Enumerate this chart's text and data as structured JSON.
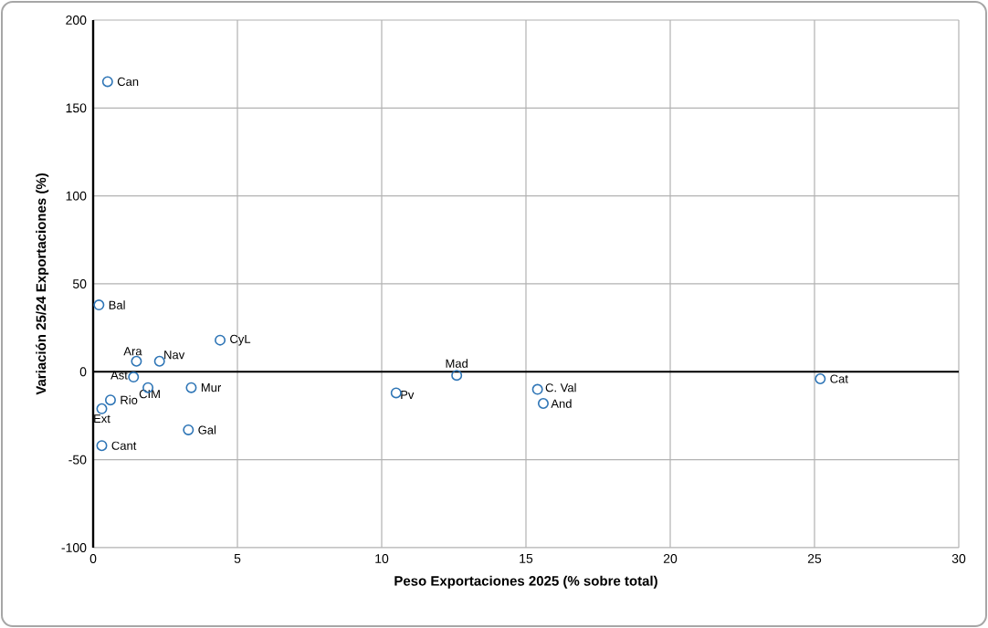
{
  "chart_data": {
    "type": "scatter",
    "xlabel": "Peso Exportaciones 2025 (% sobre total)",
    "ylabel": "Variación 25/24 Exportaciones (%)",
    "x": [
      0.5,
      0.2,
      1.5,
      2.3,
      4.4,
      1.4,
      1.9,
      3.4,
      0.6,
      0.3,
      3.3,
      0.3,
      12.6,
      10.5,
      15.4,
      15.6,
      25.2
    ],
    "values": [
      165,
      38,
      6,
      6,
      18,
      -3,
      -9,
      -9,
      -16,
      -21,
      -33,
      -42,
      -2,
      -12,
      -10,
      -18,
      -4
    ],
    "color": "#2e75b6",
    "marker": "circle",
    "grid": true,
    "xlim": [
      0,
      30
    ],
    "xticks": [
      0,
      5,
      10,
      15,
      20,
      25,
      30
    ],
    "ylim": [
      -100,
      200
    ],
    "yticks": [
      -100,
      -50,
      0,
      50,
      100,
      150,
      200
    ],
    "annotations": [
      {
        "text": "Can",
        "x": 0.5,
        "y": 165
      },
      {
        "text": "Bal",
        "x": 0.2,
        "y": 38
      },
      {
        "text": "Ara",
        "x": 1.5,
        "y": 6
      },
      {
        "text": "Nav",
        "x": 2.3,
        "y": 6
      },
      {
        "text": "CyL",
        "x": 4.4,
        "y": 18
      },
      {
        "text": "Ast",
        "x": 1.4,
        "y": -3
      },
      {
        "text": "CIM",
        "x": 1.9,
        "y": -9
      },
      {
        "text": "Mur",
        "x": 3.4,
        "y": -9
      },
      {
        "text": "Rio",
        "x": 0.6,
        "y": -16
      },
      {
        "text": "Ext",
        "x": 0.3,
        "y": -21
      },
      {
        "text": "Gal",
        "x": 3.3,
        "y": -33
      },
      {
        "text": "Cant",
        "x": 0.3,
        "y": -42
      },
      {
        "text": "Mad",
        "x": 12.6,
        "y": -2
      },
      {
        "text": "Pv",
        "x": 10.5,
        "y": -12
      },
      {
        "text": "C. Val",
        "x": 15.4,
        "y": -10
      },
      {
        "text": "And",
        "x": 15.6,
        "y": -18
      },
      {
        "text": "Cat",
        "x": 25.2,
        "y": -4
      }
    ]
  }
}
